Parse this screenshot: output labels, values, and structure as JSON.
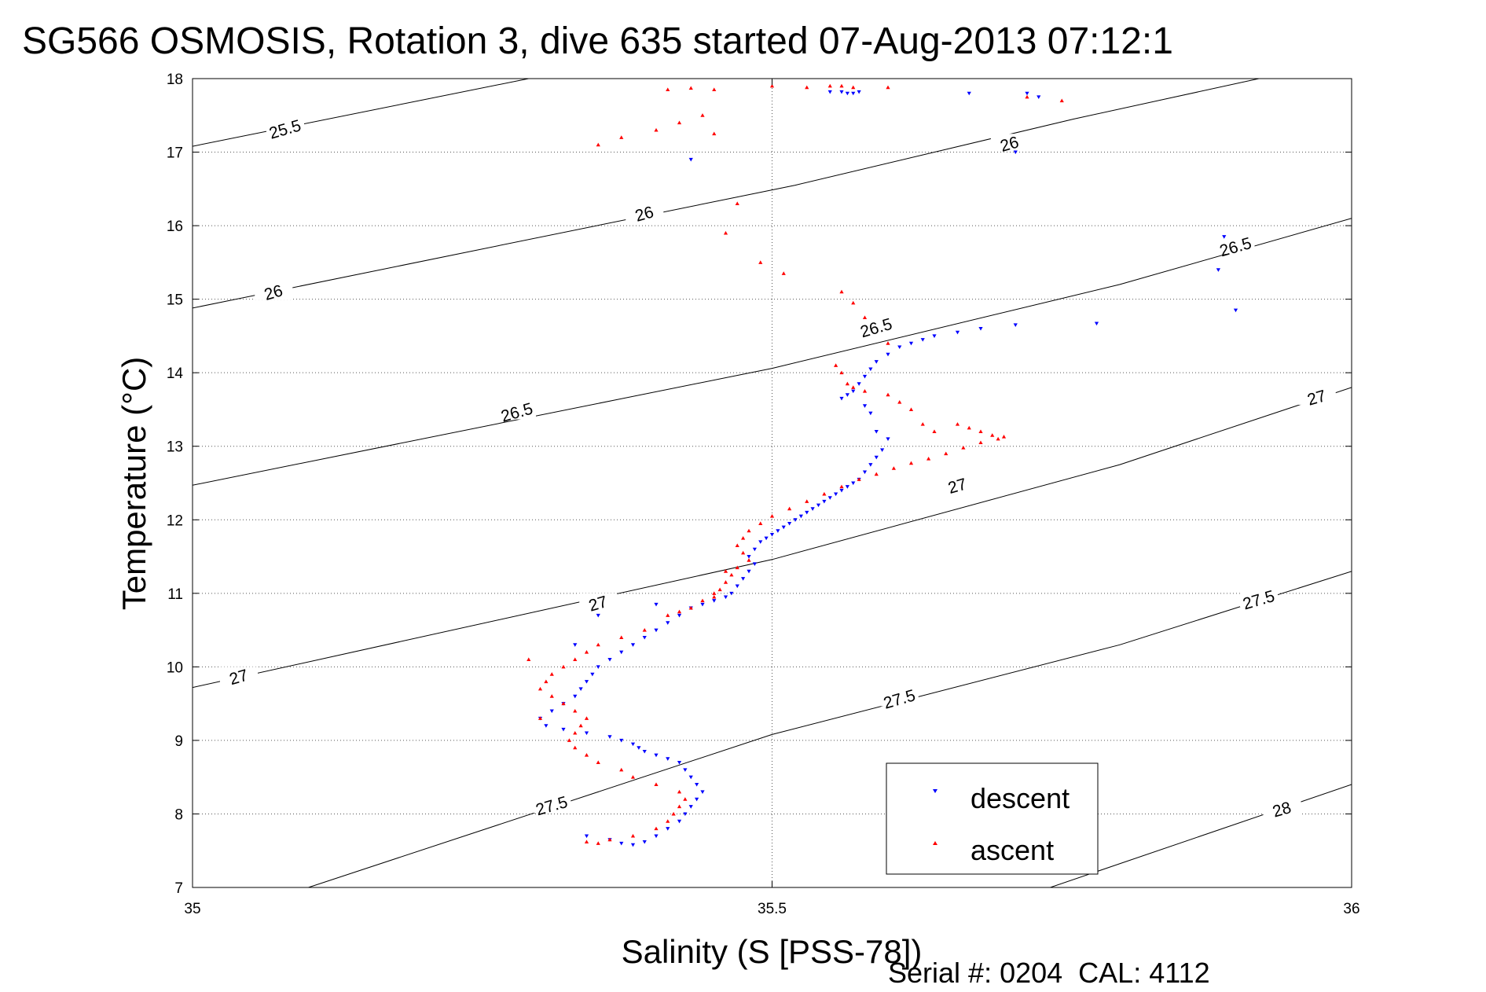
{
  "chart_data": {
    "type": "scatter",
    "title": "SG566 OSMOSIS, Rotation 3, dive 635 started 07-Aug-2013 07:12:1",
    "xlabel": "Salinity (S [PSS-78])",
    "ylabel": "Temperature (°C)",
    "xlim": [
      35,
      36
    ],
    "ylim": [
      7,
      18
    ],
    "xticks": [
      35,
      35.5,
      36
    ],
    "xtick_labels": [
      "35",
      "35.5",
      "36"
    ],
    "yticks": [
      7,
      8,
      9,
      10,
      11,
      12,
      13,
      14,
      15,
      16,
      17,
      18
    ],
    "ytick_labels": [
      "7",
      "8",
      "9",
      "10",
      "11",
      "12",
      "13",
      "14",
      "15",
      "16",
      "17",
      "18"
    ],
    "grid": true,
    "legend_position": "bottom-right",
    "footer": "Serial #: 0204  CAL: 4112",
    "density_contours": [
      {
        "level": "25.5",
        "points": [
          [
            35,
            17.08
          ],
          [
            35.29,
            18
          ]
        ]
      },
      {
        "level": "26",
        "points": [
          [
            35,
            14.88
          ],
          [
            35.52,
            16.55
          ],
          [
            35.76,
            17.45
          ],
          [
            35.92,
            18
          ]
        ]
      },
      {
        "level": "26.5",
        "points": [
          [
            35,
            12.47
          ],
          [
            35.5,
            14.06
          ],
          [
            35.8,
            15.2
          ],
          [
            36,
            16.1
          ]
        ]
      },
      {
        "level": "27",
        "points": [
          [
            35,
            9.72
          ],
          [
            35.5,
            11.46
          ],
          [
            35.8,
            12.75
          ],
          [
            36,
            13.8
          ]
        ]
      },
      {
        "level": "27.5",
        "points": [
          [
            35.1,
            7
          ],
          [
            35.5,
            9.08
          ],
          [
            35.8,
            10.3
          ],
          [
            36,
            11.3
          ]
        ]
      },
      {
        "level": "28",
        "points": [
          [
            35.74,
            7
          ],
          [
            36,
            8.4
          ]
        ]
      }
    ],
    "contour_labels": [
      {
        "text": "25.5",
        "x": 35.08,
        "y": 17.3
      },
      {
        "text": "26",
        "x": 35.07,
        "y": 15.08
      },
      {
        "text": "26",
        "x": 35.39,
        "y": 16.15
      },
      {
        "text": "26",
        "x": 35.705,
        "y": 17.1
      },
      {
        "text": "26.5",
        "x": 35.28,
        "y": 13.45
      },
      {
        "text": "26.5",
        "x": 35.59,
        "y": 14.6
      },
      {
        "text": "26.5",
        "x": 35.9,
        "y": 15.7
      },
      {
        "text": "27",
        "x": 35.04,
        "y": 9.85
      },
      {
        "text": "27",
        "x": 35.35,
        "y": 10.85
      },
      {
        "text": "27",
        "x": 35.66,
        "y": 12.45
      },
      {
        "text": "27",
        "x": 35.97,
        "y": 13.65
      },
      {
        "text": "27.5",
        "x": 35.31,
        "y": 8.1
      },
      {
        "text": "27.5",
        "x": 35.61,
        "y": 9.55
      },
      {
        "text": "27.5",
        "x": 35.92,
        "y": 10.9
      },
      {
        "text": "28",
        "x": 35.94,
        "y": 8.05
      }
    ],
    "series": [
      {
        "name": "descent",
        "color": "#0000ff",
        "marker": "triangle-down",
        "points": [
          [
            35.55,
            17.82
          ],
          [
            35.56,
            17.82
          ],
          [
            35.565,
            17.8
          ],
          [
            35.57,
            17.8
          ],
          [
            35.575,
            17.82
          ],
          [
            35.67,
            17.8
          ],
          [
            35.72,
            17.8
          ],
          [
            35.73,
            17.75
          ],
          [
            35.71,
            17.0
          ],
          [
            35.43,
            16.9
          ],
          [
            35.89,
            15.85
          ],
          [
            35.885,
            15.4
          ],
          [
            35.9,
            14.85
          ],
          [
            35.78,
            14.67
          ],
          [
            35.71,
            14.65
          ],
          [
            35.68,
            14.6
          ],
          [
            35.66,
            14.55
          ],
          [
            35.64,
            14.5
          ],
          [
            35.63,
            14.45
          ],
          [
            35.62,
            14.4
          ],
          [
            35.61,
            14.35
          ],
          [
            35.6,
            14.25
          ],
          [
            35.59,
            14.15
          ],
          [
            35.585,
            14.05
          ],
          [
            35.58,
            13.95
          ],
          [
            35.575,
            13.85
          ],
          [
            35.57,
            13.75
          ],
          [
            35.565,
            13.7
          ],
          [
            35.56,
            13.65
          ],
          [
            35.58,
            13.55
          ],
          [
            35.585,
            13.45
          ],
          [
            35.59,
            13.2
          ],
          [
            35.6,
            13.1
          ],
          [
            35.595,
            12.95
          ],
          [
            35.59,
            12.85
          ],
          [
            35.585,
            12.75
          ],
          [
            35.58,
            12.65
          ],
          [
            35.575,
            12.55
          ],
          [
            35.57,
            12.5
          ],
          [
            35.565,
            12.45
          ],
          [
            35.56,
            12.4
          ],
          [
            35.555,
            12.35
          ],
          [
            35.55,
            12.3
          ],
          [
            35.545,
            12.25
          ],
          [
            35.54,
            12.2
          ],
          [
            35.535,
            12.15
          ],
          [
            35.53,
            12.1
          ],
          [
            35.525,
            12.05
          ],
          [
            35.52,
            12.0
          ],
          [
            35.515,
            11.95
          ],
          [
            35.51,
            11.9
          ],
          [
            35.505,
            11.85
          ],
          [
            35.5,
            11.8
          ],
          [
            35.495,
            11.75
          ],
          [
            35.49,
            11.7
          ],
          [
            35.485,
            11.6
          ],
          [
            35.48,
            11.5
          ],
          [
            35.485,
            11.4
          ],
          [
            35.48,
            11.3
          ],
          [
            35.475,
            11.2
          ],
          [
            35.47,
            11.1
          ],
          [
            35.465,
            11.0
          ],
          [
            35.46,
            10.95
          ],
          [
            35.45,
            10.9
          ],
          [
            35.44,
            10.85
          ],
          [
            35.43,
            10.8
          ],
          [
            35.42,
            10.7
          ],
          [
            35.41,
            10.6
          ],
          [
            35.4,
            10.5
          ],
          [
            35.39,
            10.4
          ],
          [
            35.38,
            10.3
          ],
          [
            35.37,
            10.2
          ],
          [
            35.36,
            10.1
          ],
          [
            35.35,
            10.0
          ],
          [
            35.345,
            9.9
          ],
          [
            35.34,
            9.8
          ],
          [
            35.335,
            9.7
          ],
          [
            35.33,
            9.6
          ],
          [
            35.32,
            9.5
          ],
          [
            35.31,
            9.4
          ],
          [
            35.3,
            9.3
          ],
          [
            35.305,
            9.2
          ],
          [
            35.32,
            9.15
          ],
          [
            35.34,
            9.1
          ],
          [
            35.36,
            9.05
          ],
          [
            35.37,
            9.0
          ],
          [
            35.38,
            8.95
          ],
          [
            35.385,
            8.9
          ],
          [
            35.39,
            8.85
          ],
          [
            35.4,
            8.8
          ],
          [
            35.41,
            8.75
          ],
          [
            35.42,
            8.7
          ],
          [
            35.425,
            8.6
          ],
          [
            35.43,
            8.5
          ],
          [
            35.435,
            8.4
          ],
          [
            35.44,
            8.3
          ],
          [
            35.435,
            8.2
          ],
          [
            35.43,
            8.1
          ],
          [
            35.425,
            8.0
          ],
          [
            35.42,
            7.9
          ],
          [
            35.41,
            7.8
          ],
          [
            35.4,
            7.7
          ],
          [
            35.39,
            7.62
          ],
          [
            35.38,
            7.58
          ],
          [
            35.37,
            7.6
          ],
          [
            35.36,
            7.65
          ],
          [
            35.34,
            7.7
          ],
          [
            35.35,
            10.7
          ],
          [
            35.33,
            10.3
          ],
          [
            35.4,
            10.85
          ]
        ]
      },
      {
        "name": "ascent",
        "color": "#ff0000",
        "marker": "triangle-up",
        "points": [
          [
            35.41,
            17.85
          ],
          [
            35.43,
            17.87
          ],
          [
            35.45,
            17.85
          ],
          [
            35.5,
            17.9
          ],
          [
            35.53,
            17.88
          ],
          [
            35.55,
            17.9
          ],
          [
            35.56,
            17.9
          ],
          [
            35.57,
            17.88
          ],
          [
            35.6,
            17.88
          ],
          [
            35.72,
            17.75
          ],
          [
            35.75,
            17.7
          ],
          [
            35.35,
            17.1
          ],
          [
            35.37,
            17.2
          ],
          [
            35.4,
            17.3
          ],
          [
            35.42,
            17.4
          ],
          [
            35.44,
            17.5
          ],
          [
            35.45,
            17.25
          ],
          [
            35.47,
            16.3
          ],
          [
            35.46,
            15.9
          ],
          [
            35.49,
            15.5
          ],
          [
            35.51,
            15.35
          ],
          [
            35.56,
            15.1
          ],
          [
            35.57,
            14.95
          ],
          [
            35.58,
            14.75
          ],
          [
            35.6,
            14.4
          ],
          [
            35.555,
            14.1
          ],
          [
            35.56,
            14.0
          ],
          [
            35.565,
            13.85
          ],
          [
            35.57,
            13.8
          ],
          [
            35.58,
            13.75
          ],
          [
            35.6,
            13.7
          ],
          [
            35.61,
            13.6
          ],
          [
            35.62,
            13.5
          ],
          [
            35.63,
            13.3
          ],
          [
            35.64,
            13.2
          ],
          [
            35.66,
            13.3
          ],
          [
            35.67,
            13.25
          ],
          [
            35.68,
            13.2
          ],
          [
            35.69,
            13.15
          ],
          [
            35.7,
            13.13
          ],
          [
            35.695,
            13.1
          ],
          [
            35.68,
            13.05
          ],
          [
            35.665,
            12.98
          ],
          [
            35.65,
            12.9
          ],
          [
            35.635,
            12.83
          ],
          [
            35.62,
            12.77
          ],
          [
            35.605,
            12.7
          ],
          [
            35.59,
            12.62
          ],
          [
            35.575,
            12.55
          ],
          [
            35.56,
            12.45
          ],
          [
            35.545,
            12.35
          ],
          [
            35.53,
            12.25
          ],
          [
            35.515,
            12.15
          ],
          [
            35.5,
            12.05
          ],
          [
            35.49,
            11.95
          ],
          [
            35.48,
            11.85
          ],
          [
            35.475,
            11.75
          ],
          [
            35.47,
            11.65
          ],
          [
            35.475,
            11.55
          ],
          [
            35.48,
            11.45
          ],
          [
            35.47,
            11.35
          ],
          [
            35.465,
            11.25
          ],
          [
            35.46,
            11.15
          ],
          [
            35.455,
            11.05
          ],
          [
            35.45,
            10.95
          ],
          [
            35.44,
            10.9
          ],
          [
            35.43,
            10.8
          ],
          [
            35.42,
            10.75
          ],
          [
            35.41,
            10.7
          ],
          [
            35.39,
            10.5
          ],
          [
            35.37,
            10.4
          ],
          [
            35.35,
            10.3
          ],
          [
            35.34,
            10.2
          ],
          [
            35.33,
            10.1
          ],
          [
            35.32,
            10.0
          ],
          [
            35.31,
            9.9
          ],
          [
            35.305,
            9.8
          ],
          [
            35.3,
            9.7
          ],
          [
            35.31,
            9.6
          ],
          [
            35.32,
            9.5
          ],
          [
            35.33,
            9.4
          ],
          [
            35.34,
            9.3
          ],
          [
            35.335,
            9.2
          ],
          [
            35.33,
            9.1
          ],
          [
            35.325,
            9.0
          ],
          [
            35.33,
            8.9
          ],
          [
            35.34,
            8.8
          ],
          [
            35.35,
            8.7
          ],
          [
            35.37,
            8.6
          ],
          [
            35.38,
            8.5
          ],
          [
            35.4,
            8.4
          ],
          [
            35.42,
            8.3
          ],
          [
            35.425,
            8.2
          ],
          [
            35.42,
            8.1
          ],
          [
            35.415,
            8.0
          ],
          [
            35.41,
            7.9
          ],
          [
            35.4,
            7.8
          ],
          [
            35.38,
            7.7
          ],
          [
            35.36,
            7.65
          ],
          [
            35.35,
            7.6
          ],
          [
            35.34,
            7.62
          ],
          [
            35.45,
            11.0
          ],
          [
            35.46,
            11.3
          ],
          [
            35.29,
            10.1
          ],
          [
            35.3,
            9.3
          ]
        ]
      }
    ]
  }
}
